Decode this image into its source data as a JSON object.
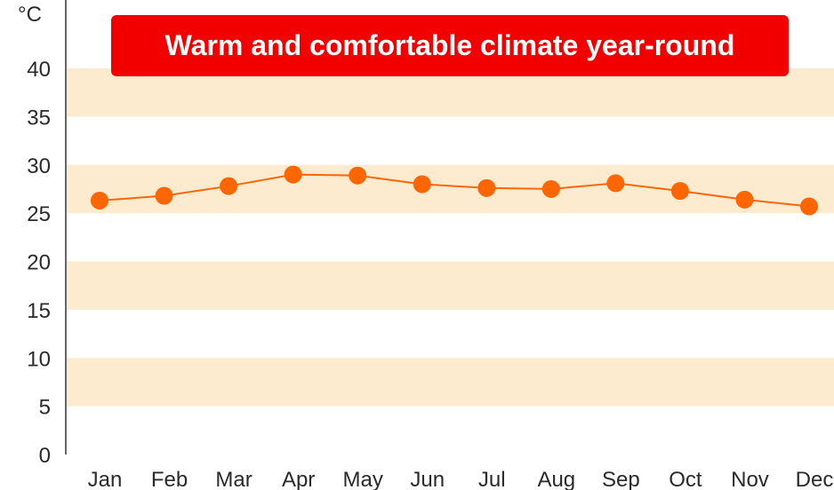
{
  "chart_data": {
    "type": "line",
    "title": "Warm and comfortable climate year-round",
    "ylabel": "°C",
    "xlabel": "",
    "ylim": [
      0,
      40
    ],
    "yticks": [
      0,
      5,
      10,
      15,
      20,
      25,
      30,
      35,
      40
    ],
    "categories": [
      "Jan",
      "Feb",
      "Mar",
      "Apr",
      "May",
      "Jun",
      "Jul",
      "Aug",
      "Sep",
      "Oct",
      "Nov",
      "Dec"
    ],
    "series": [
      {
        "values": [
          26.3,
          26.8,
          27.8,
          29.0,
          28.9,
          28.0,
          27.6,
          27.5,
          28.1,
          27.3,
          26.4,
          25.7
        ]
      }
    ],
    "bands": [
      [
        5,
        10
      ],
      [
        15,
        20
      ],
      [
        25,
        30
      ],
      [
        35,
        40
      ]
    ],
    "grid": false,
    "legend": "none"
  },
  "colors": {
    "line": "#ff6600",
    "marker": "#ff6600",
    "band": "#fdebd0",
    "title_bg": "#f20000",
    "title_text": "#ffffff",
    "axis": "#333333"
  }
}
